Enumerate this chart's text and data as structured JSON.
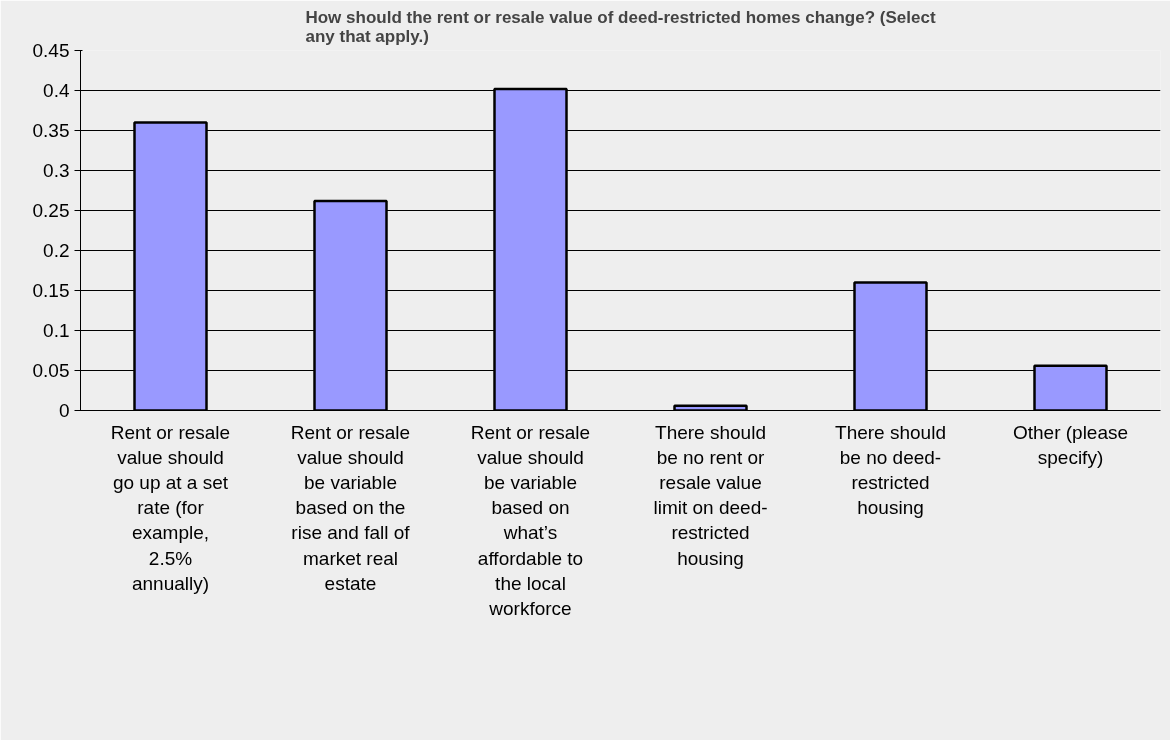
{
  "chart_data": {
    "type": "bar",
    "title": "How should the rent or resale value of deed-restricted homes change? (Select\nany that apply.)",
    "categories": [
      "Rent or resale\nvalue should\ngo up at a set\nrate (for\nexample,\n2.5%\nannually)",
      "Rent or resale\nvalue should\nbe variable\nbased on the\nrise and fall of\nmarket real\nestate",
      "Rent or resale\nvalue should\nbe variable\nbased on\nwhat’s\naffordable to\nthe local\nworkforce",
      "There should\nbe no rent or\nresale value\nlimit on deed-\nrestricted\nhousing",
      "There should\nbe no deed-\nrestricted\nhousing",
      "Other (please\nspecify)"
    ],
    "values": [
      0.36,
      0.262,
      0.402,
      0.006,
      0.16,
      0.056
    ],
    "color": "#9999ff",
    "ylim": [
      0,
      0.45
    ],
    "yticks": [
      0,
      0.05,
      0.1,
      0.15,
      0.2,
      0.25,
      0.3,
      0.35,
      0.4,
      0.45
    ],
    "grid": "y"
  }
}
